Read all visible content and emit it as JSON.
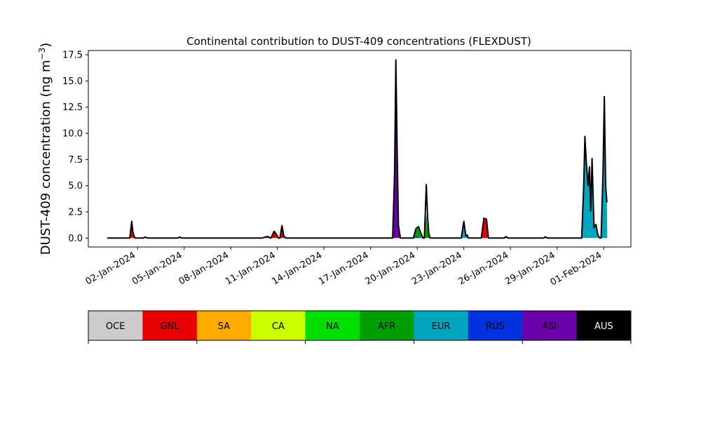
{
  "chart_data": {
    "type": "area",
    "title": "Continental contribution to DUST-409 concentrations (FLEXDUST)",
    "ylabel": "DUST-409 concentration (ng m",
    "ylabel_sup": "−3",
    "ylabel_close": ")",
    "xlabel": "",
    "ylim": [
      -0.85,
      17.9
    ],
    "yticks": [
      {
        "value": 0.0,
        "label": "0.0"
      },
      {
        "value": 2.5,
        "label": "2.5"
      },
      {
        "value": 5.0,
        "label": "5.0"
      },
      {
        "value": 7.5,
        "label": "7.5"
      },
      {
        "value": 10.0,
        "label": "10.0"
      },
      {
        "value": 12.5,
        "label": "12.5"
      },
      {
        "value": 15.0,
        "label": "15.0"
      },
      {
        "value": 17.5,
        "label": "17.5"
      }
    ],
    "xlim": [
      "2023-12-29T20:00",
      "2024-02-02T18:00"
    ],
    "xticks": [
      {
        "value": "2024-01-02",
        "label": "02-Jan-2024"
      },
      {
        "value": "2024-01-05",
        "label": "05-Jan-2024"
      },
      {
        "value": "2024-01-08",
        "label": "08-Jan-2024"
      },
      {
        "value": "2024-01-11",
        "label": "11-Jan-2024"
      },
      {
        "value": "2024-01-14",
        "label": "14-Jan-2024"
      },
      {
        "value": "2024-01-17",
        "label": "17-Jan-2024"
      },
      {
        "value": "2024-01-20",
        "label": "20-Jan-2024"
      },
      {
        "value": "2024-01-23",
        "label": "23-Jan-2024"
      },
      {
        "value": "2024-01-26",
        "label": "26-Jan-2024"
      },
      {
        "value": "2024-01-29",
        "label": "29-Jan-2024"
      },
      {
        "value": "2024-02-01",
        "label": "01-Feb-2024"
      }
    ],
    "grid": false,
    "legend_position": "bottom",
    "legend": [
      {
        "name": "OCE",
        "color": "#cccccc",
        "text_color": "#000000"
      },
      {
        "name": "GNL",
        "color": "#e60000",
        "text_color": "#000000"
      },
      {
        "name": "SA",
        "color": "#ffaa00",
        "text_color": "#000000"
      },
      {
        "name": "CA",
        "color": "#ccff00",
        "text_color": "#000000"
      },
      {
        "name": "NA",
        "color": "#00e000",
        "text_color": "#000000"
      },
      {
        "name": "AFR",
        "color": "#009e00",
        "text_color": "#000000"
      },
      {
        "name": "EUR",
        "color": "#00a6bf",
        "text_color": "#000000"
      },
      {
        "name": "RUS",
        "color": "#0033dd",
        "text_color": "#000000"
      },
      {
        "name": "ASI",
        "color": "#6a00a8",
        "text_color": "#000000"
      },
      {
        "name": "AUS",
        "color": "#000000",
        "text_color": "#ffffff"
      }
    ],
    "series": [
      {
        "region": "GNL",
        "points": [
          [
            "2024-01-01T12:00",
            0
          ],
          [
            "2024-01-01T15:00",
            1.1
          ],
          [
            "2024-01-01T17:00",
            0.3
          ],
          [
            "2024-01-01T20:00",
            0
          ],
          [
            "2024-01-10T00:00",
            0
          ],
          [
            "2024-01-10T08:00",
            0.1
          ],
          [
            "2024-01-10T12:00",
            0
          ],
          [
            "2024-01-10T14:00",
            0
          ],
          [
            "2024-01-10T19:00",
            0.6
          ],
          [
            "2024-01-10T23:00",
            0.2
          ],
          [
            "2024-01-11T02:00",
            0
          ],
          [
            "2024-01-11T04:00",
            0
          ],
          [
            "2024-01-11T07:00",
            1.0
          ],
          [
            "2024-01-11T10:00",
            0.1
          ],
          [
            "2024-01-11T13:00",
            0
          ],
          [
            "2024-01-24T03:00",
            0
          ],
          [
            "2024-01-24T07:00",
            1.8
          ],
          [
            "2024-01-24T11:00",
            1.7
          ],
          [
            "2024-01-24T14:00",
            0
          ],
          [
            "2024-01-25T14:00",
            0
          ],
          [
            "2024-01-25T17:00",
            0.1
          ],
          [
            "2024-01-25T20:00",
            0
          ]
        ]
      },
      {
        "region": "AFR",
        "points": [
          [
            "2024-01-19T18:00",
            0
          ],
          [
            "2024-01-19T22:00",
            0.8
          ],
          [
            "2024-01-20T02:00",
            1.0
          ],
          [
            "2024-01-20T06:00",
            0.3
          ],
          [
            "2024-01-20T09:00",
            0
          ],
          [
            "2024-01-20T11:00",
            0
          ],
          [
            "2024-01-20T14:00",
            2.3
          ],
          [
            "2024-01-20T17:00",
            0.4
          ],
          [
            "2024-01-20T20:00",
            0
          ]
        ]
      },
      {
        "region": "EUR",
        "points": [
          [
            "2024-01-22T20:00",
            0
          ],
          [
            "2024-01-23T00:00",
            1.4
          ],
          [
            "2024-01-23T03:00",
            0.2
          ],
          [
            "2024-01-23T05:00",
            0.3
          ],
          [
            "2024-01-23T07:00",
            0
          ],
          [
            "2024-01-30T14:00",
            0
          ],
          [
            "2024-01-30T17:00",
            4.5
          ],
          [
            "2024-01-30T19:00",
            9.0
          ],
          [
            "2024-01-30T21:00",
            7.0
          ],
          [
            "2024-01-31T00:00",
            5.0
          ],
          [
            "2024-01-31T02:00",
            6.6
          ],
          [
            "2024-01-31T04:00",
            2.5
          ],
          [
            "2024-01-31T06:00",
            7.3
          ],
          [
            "2024-01-31T09:00",
            1.0
          ],
          [
            "2024-01-31T12:00",
            1.2
          ],
          [
            "2024-01-31T15:00",
            0.3
          ],
          [
            "2024-01-31T18:00",
            0
          ],
          [
            "2024-01-31T20:00",
            0
          ],
          [
            "2024-01-31T23:00",
            6.0
          ],
          [
            "2024-02-01T01:00",
            12.5
          ],
          [
            "2024-02-01T03:00",
            4.5
          ],
          [
            "2024-02-01T05:00",
            3.3
          ],
          [
            "2024-02-01T05:30",
            0
          ]
        ]
      },
      {
        "region": "RUS",
        "points": [
          [
            "2024-01-02T09:00",
            0
          ],
          [
            "2024-01-02T12:00",
            0.1
          ],
          [
            "2024-01-02T15:00",
            0
          ],
          [
            "2024-01-04T14:00",
            0
          ],
          [
            "2024-01-04T17:00",
            0.1
          ],
          [
            "2024-01-04T20:00",
            0
          ],
          [
            "2024-01-19T18:00",
            0
          ],
          [
            "2024-01-20T00:00",
            0.15
          ],
          [
            "2024-01-20T04:00",
            0
          ],
          [
            "2024-01-28T03:00",
            0
          ],
          [
            "2024-01-28T06:00",
            0.1
          ],
          [
            "2024-01-28T09:00",
            0
          ]
        ]
      },
      {
        "region": "ASI",
        "points": [
          [
            "2024-01-18T10:00",
            0
          ],
          [
            "2024-01-18T13:00",
            6.0
          ],
          [
            "2024-01-18T15:00",
            16.8
          ],
          [
            "2024-01-18T17:00",
            8.0
          ],
          [
            "2024-01-18T19:00",
            1.0
          ],
          [
            "2024-01-18T22:00",
            0
          ]
        ]
      }
    ],
    "total": [
      [
        "2023-12-31T01:00",
        0
      ],
      [
        "2024-01-01T12:00",
        0
      ],
      [
        "2024-01-01T15:00",
        1.6
      ],
      [
        "2024-01-01T17:00",
        0.5
      ],
      [
        "2024-01-01T20:00",
        0
      ],
      [
        "2024-01-02T09:00",
        0
      ],
      [
        "2024-01-02T12:00",
        0.1
      ],
      [
        "2024-01-02T15:00",
        0
      ],
      [
        "2024-01-04T14:00",
        0
      ],
      [
        "2024-01-04T17:00",
        0.1
      ],
      [
        "2024-01-04T20:00",
        0
      ],
      [
        "2024-01-10T00:00",
        0
      ],
      [
        "2024-01-10T08:00",
        0.15
      ],
      [
        "2024-01-10T12:00",
        0.05
      ],
      [
        "2024-01-10T14:00",
        0
      ],
      [
        "2024-01-10T19:00",
        0.65
      ],
      [
        "2024-01-10T23:00",
        0.3
      ],
      [
        "2024-01-11T02:00",
        0
      ],
      [
        "2024-01-11T04:00",
        0
      ],
      [
        "2024-01-11T07:00",
        1.2
      ],
      [
        "2024-01-11T10:00",
        0.2
      ],
      [
        "2024-01-11T13:00",
        0
      ],
      [
        "2024-01-18T10:00",
        0
      ],
      [
        "2024-01-18T13:00",
        6.2
      ],
      [
        "2024-01-18T15:00",
        17.0
      ],
      [
        "2024-01-18T17:00",
        8.2
      ],
      [
        "2024-01-18T19:00",
        1.2
      ],
      [
        "2024-01-18T22:00",
        0
      ],
      [
        "2024-01-19T18:00",
        0
      ],
      [
        "2024-01-19T22:00",
        0.9
      ],
      [
        "2024-01-20T02:00",
        1.1
      ],
      [
        "2024-01-20T06:00",
        0.4
      ],
      [
        "2024-01-20T09:00",
        0
      ],
      [
        "2024-01-20T11:00",
        0
      ],
      [
        "2024-01-20T14:00",
        5.1
      ],
      [
        "2024-01-20T16:00",
        2.0
      ],
      [
        "2024-01-20T18:00",
        0.4
      ],
      [
        "2024-01-20T20:00",
        0
      ],
      [
        "2024-01-22T20:00",
        0
      ],
      [
        "2024-01-23T00:00",
        1.6
      ],
      [
        "2024-01-23T03:00",
        0.2
      ],
      [
        "2024-01-23T05:00",
        0.3
      ],
      [
        "2024-01-23T07:00",
        0
      ],
      [
        "2024-01-24T03:00",
        0
      ],
      [
        "2024-01-24T07:00",
        1.9
      ],
      [
        "2024-01-24T11:00",
        1.8
      ],
      [
        "2024-01-24T14:00",
        0
      ],
      [
        "2024-01-25T14:00",
        0
      ],
      [
        "2024-01-25T17:00",
        0.15
      ],
      [
        "2024-01-25T20:00",
        0
      ],
      [
        "2024-01-28T03:00",
        0
      ],
      [
        "2024-01-28T06:00",
        0.12
      ],
      [
        "2024-01-28T09:00",
        0
      ],
      [
        "2024-01-30T14:00",
        0
      ],
      [
        "2024-01-30T17:00",
        4.8
      ],
      [
        "2024-01-30T19:00",
        9.7
      ],
      [
        "2024-01-30T21:00",
        7.3
      ],
      [
        "2024-01-31T00:00",
        5.0
      ],
      [
        "2024-01-31T02:00",
        6.8
      ],
      [
        "2024-01-31T04:00",
        2.6
      ],
      [
        "2024-01-31T06:00",
        7.6
      ],
      [
        "2024-01-31T09:00",
        1.0
      ],
      [
        "2024-01-31T12:00",
        1.3
      ],
      [
        "2024-01-31T15:00",
        0.3
      ],
      [
        "2024-01-31T18:00",
        0
      ],
      [
        "2024-01-31T20:00",
        0
      ],
      [
        "2024-01-31T23:00",
        6.5
      ],
      [
        "2024-02-01T01:00",
        13.5
      ],
      [
        "2024-02-01T03:00",
        4.9
      ],
      [
        "2024-02-01T05:00",
        3.4
      ]
    ]
  }
}
